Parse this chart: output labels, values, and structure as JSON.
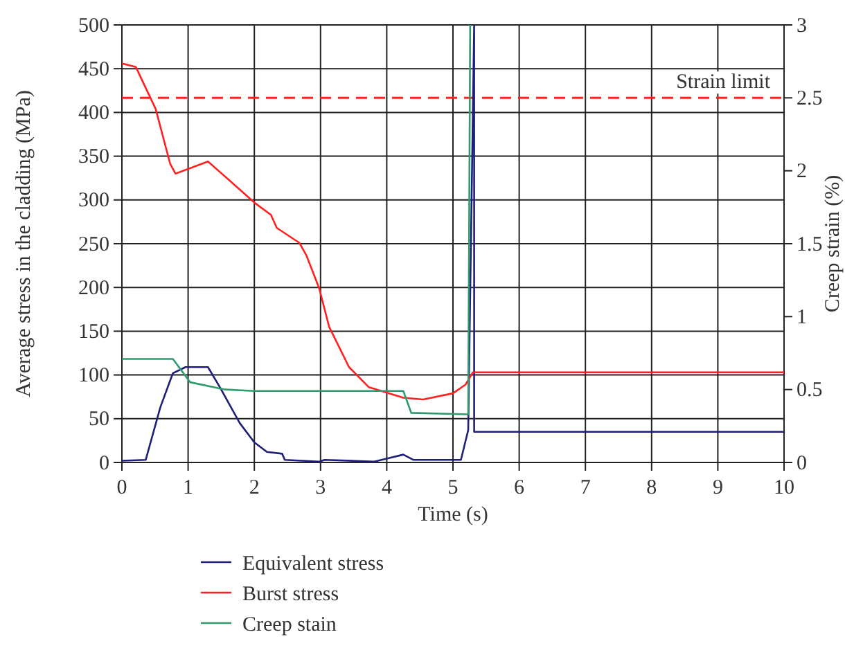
{
  "chart_data": {
    "type": "line",
    "xlabel": "Time (s)",
    "ylabel": "Average stress in the cladding (MPa)",
    "y2label": "Creep strain (%)",
    "xlim": [
      0,
      10
    ],
    "xticks": [
      0,
      1,
      2,
      3,
      4,
      5,
      6,
      7,
      8,
      9,
      10
    ],
    "ylim": [
      0,
      500
    ],
    "yticks": [
      0,
      50,
      100,
      150,
      200,
      250,
      300,
      350,
      400,
      450,
      500
    ],
    "y2lim": [
      0,
      3
    ],
    "y2ticks": [
      0,
      0.5,
      1,
      1.5,
      2,
      2.5,
      3
    ],
    "grid": true,
    "legend": "bottom",
    "line_style": "solid",
    "marker": "none",
    "ref_lines": [
      {
        "axis": "y2",
        "value": 2.5,
        "label": "Strain limit",
        "color": "#ff2020",
        "line_style": "dashed"
      }
    ],
    "series": [
      {
        "name": "Equivalent stress",
        "color": "#1f1f7a",
        "x": [
          0,
          0.36,
          0.58,
          0.77,
          0.96,
          1.3,
          1.48,
          1.78,
          2.0,
          2.19,
          2.42,
          2.46,
          2.98,
          3.06,
          3.81,
          4.03,
          4.25,
          4.4,
          5.12,
          5.23,
          5.32,
          5.32,
          10
        ],
        "values": [
          2,
          3,
          63,
          102,
          109,
          109,
          86,
          45,
          23,
          12,
          10,
          3,
          1,
          3,
          1,
          5,
          9,
          3,
          3,
          37,
          500,
          35,
          35
        ]
      },
      {
        "name": "Burst stress",
        "color": "#ff2020",
        "x": [
          0,
          0.21,
          0.51,
          0.73,
          0.81,
          1.3,
          1.48,
          2.0,
          2.25,
          2.34,
          2.68,
          2.79,
          2.98,
          3.13,
          3.43,
          3.73,
          4.25,
          4.55,
          5.0,
          5.19,
          5.3,
          10
        ],
        "values": [
          456,
          452,
          404,
          341,
          330,
          344,
          332,
          297,
          283,
          268,
          251,
          236,
          199,
          155,
          109,
          86,
          74,
          72,
          79,
          89,
          103,
          103
        ]
      },
      {
        "name": "Creep stain",
        "color": "#2e9a6e",
        "axis": "y2",
        "x": [
          0,
          0.77,
          1.03,
          1.56,
          2.0,
          4.25,
          4.37,
          5.23,
          5.26
        ],
        "values": [
          0.71,
          0.71,
          0.55,
          0.5,
          0.49,
          0.49,
          0.34,
          0.33,
          3
        ]
      }
    ]
  }
}
